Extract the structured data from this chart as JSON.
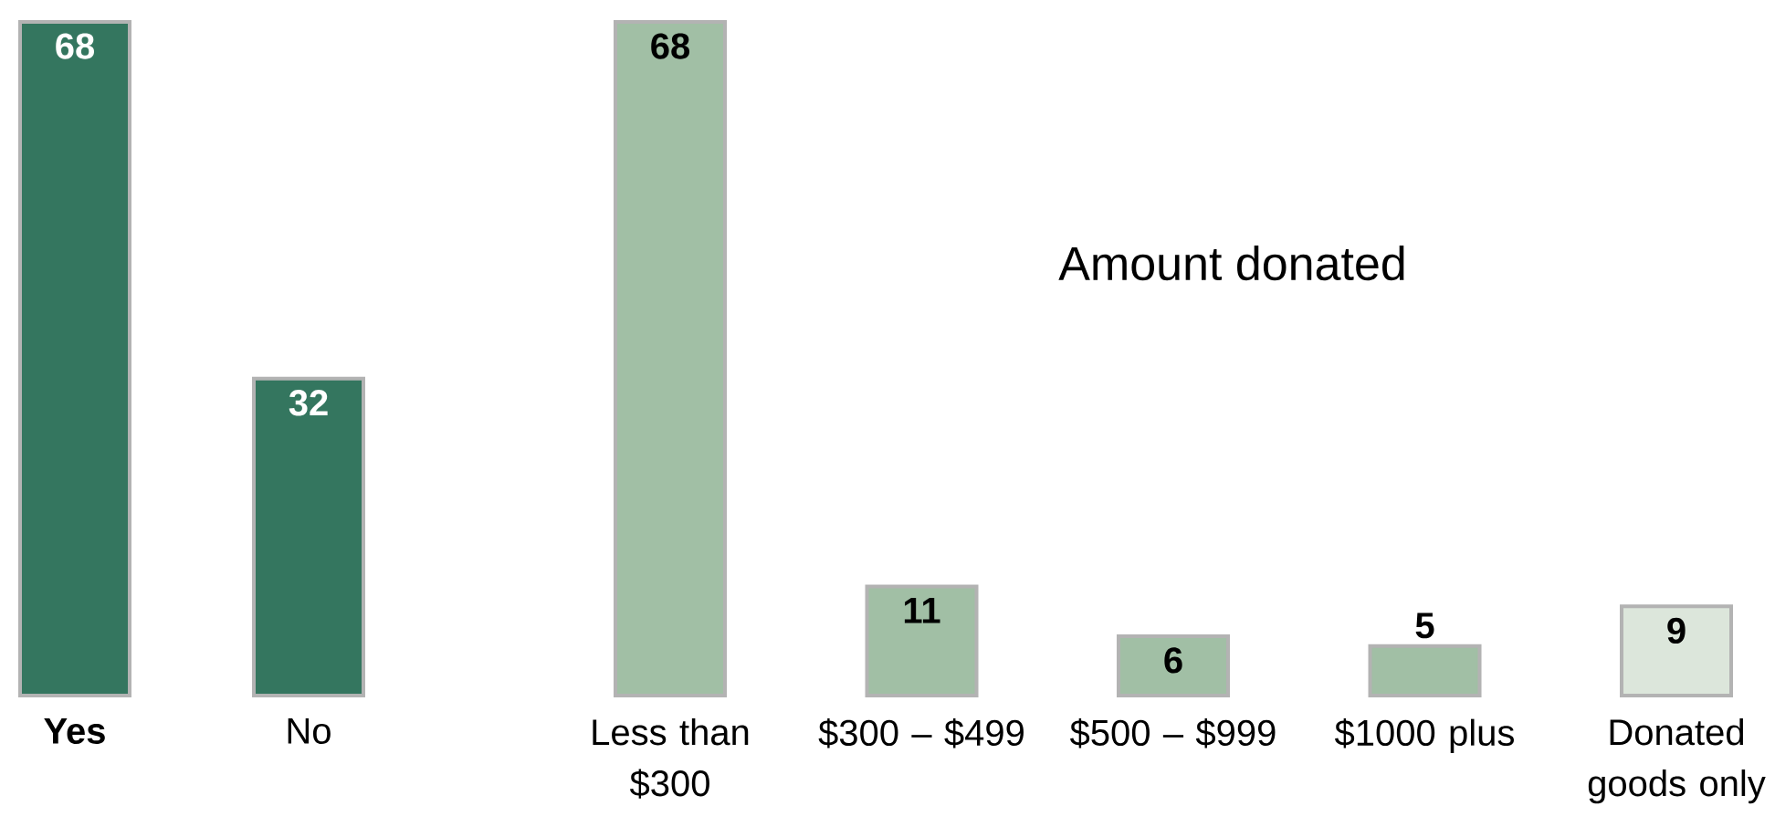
{
  "chart_data": [
    {
      "type": "bar",
      "categories": [
        "**Yes**",
        "No"
      ],
      "values": [
        68,
        32
      ],
      "colors": [
        "#34765f",
        "#34765f"
      ],
      "data_labels": true
    },
    {
      "type": "bar",
      "title": "Amount donated",
      "categories": [
        "Less than $300",
        "$300 – $499",
        "$500 – $999",
        "$1000 plus",
        "Donated goods only"
      ],
      "values": [
        68,
        11,
        6,
        5,
        9
      ],
      "colors": [
        "#a1bfa5",
        "#a1bfa5",
        "#a1bfa5",
        "#a1bfa5",
        "#dce6db"
      ],
      "data_labels": true
    }
  ]
}
